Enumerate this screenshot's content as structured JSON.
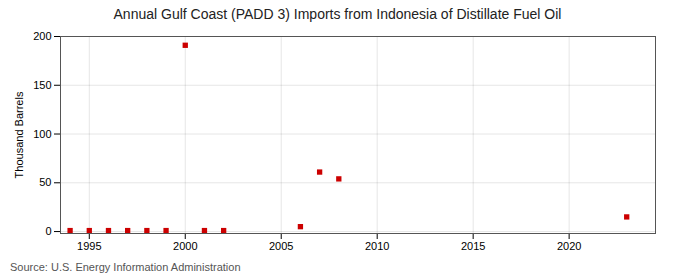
{
  "chart_data": {
    "type": "scatter",
    "title": "Annual Gulf Coast (PADD 3) Imports from Indonesia of Distillate Fuel Oil",
    "ylabel": "Thousand Barrels",
    "annotation": "Source: U.S. Energy Information Administration",
    "x": [
      1994,
      1995,
      1996,
      1997,
      1998,
      1999,
      2000,
      2001,
      2002,
      2006,
      2007,
      2008,
      2023
    ],
    "values": [
      1,
      1,
      1,
      1,
      1,
      1,
      191,
      1,
      1,
      5,
      61,
      54,
      15
    ],
    "color": "#cc0000",
    "marker": "square",
    "xlim": [
      1993.5,
      2024.5
    ],
    "ylim": [
      -2,
      200
    ],
    "xticks": [
      1995,
      2000,
      2005,
      2010,
      2015,
      2020
    ],
    "yticks": [
      0,
      50,
      100,
      150,
      200
    ],
    "grid": true
  }
}
